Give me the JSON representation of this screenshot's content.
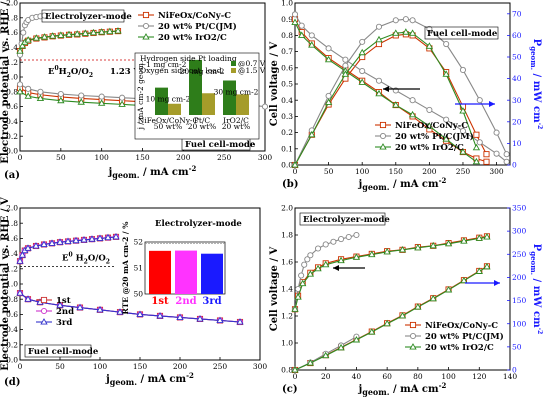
{
  "chart_data": [
    {
      "id": "a",
      "type": "line",
      "panel_label": "(a)",
      "xlabel": "jgeom. / mA cm-2",
      "xlabel_main": "j",
      "xlabel_sub": "geom.",
      "xlabel_unit": " / mA cm",
      "xlabel_sup": "-2",
      "ylabel": "Electrode potential vs. RHE / V",
      "xlim": [
        0,
        300
      ],
      "ylim": [
        0.0,
        2.0
      ],
      "xticks": [
        0,
        50,
        100,
        150,
        200,
        250,
        300
      ],
      "yticks": [
        0.0,
        0.2,
        0.4,
        0.6,
        0.8,
        1.0,
        1.2,
        1.4,
        1.6,
        1.8,
        2.0
      ],
      "mode_top": "Electrolyzer-mode",
      "mode_bottom": "Fuel cell-mode",
      "reference_line": {
        "y": 1.23,
        "label": "E0H2O/O2",
        "value_label": "1.23 V"
      },
      "series": [
        {
          "name": "NiFeOx/CoNy-C",
          "color": "#cc3300",
          "marker": "square",
          "oer_x": [
            0,
            3,
            6,
            10,
            20,
            30,
            40,
            50,
            60,
            70,
            80,
            90,
            100,
            110,
            120
          ],
          "oer_y": [
            1.35,
            1.42,
            1.46,
            1.49,
            1.52,
            1.535,
            1.55,
            1.56,
            1.57,
            1.575,
            1.585,
            1.595,
            1.605,
            1.612,
            1.62
          ],
          "orr_x": [
            0,
            10,
            25,
            50,
            75,
            100,
            125,
            150,
            175,
            200,
            225,
            250,
            275
          ],
          "orr_y": [
            0.85,
            0.79,
            0.76,
            0.73,
            0.71,
            0.695,
            0.68,
            0.665,
            0.65,
            0.635,
            0.62,
            0.605,
            0.59
          ]
        },
        {
          "name": "20 wt% Pt/C(JM)",
          "color": "#888888",
          "marker": "circle",
          "oer_x": [
            0,
            2,
            4,
            6,
            8,
            10,
            15,
            20,
            25,
            30
          ],
          "oer_y": [
            1.3,
            1.45,
            1.6,
            1.7,
            1.74,
            1.77,
            1.8,
            1.81,
            1.82,
            1.83
          ],
          "orr_x": [
            0,
            10,
            25,
            50,
            75,
            100,
            125,
            150,
            175,
            200,
            225,
            250,
            275,
            300
          ],
          "orr_y": [
            0.9,
            0.84,
            0.8,
            0.77,
            0.75,
            0.735,
            0.72,
            0.705,
            0.69,
            0.675,
            0.66,
            0.645,
            0.625,
            0.6
          ]
        },
        {
          "name": "20 wt% IrO2/C",
          "color": "#2e8b22",
          "marker": "triangle",
          "oer_x": [
            0,
            3,
            6,
            10,
            20,
            30,
            40,
            50,
            60,
            70,
            80,
            90,
            100,
            110,
            120
          ],
          "oer_y": [
            1.35,
            1.42,
            1.47,
            1.5,
            1.525,
            1.54,
            1.553,
            1.563,
            1.573,
            1.58,
            1.59,
            1.598,
            1.607,
            1.614,
            1.622
          ],
          "orr_x": [
            0,
            10,
            25,
            50,
            75,
            100,
            125,
            150,
            175,
            200,
            225,
            250
          ],
          "orr_y": [
            0.8,
            0.74,
            0.71,
            0.68,
            0.66,
            0.645,
            0.63,
            0.615,
            0.6,
            0.59,
            0.575,
            0.56
          ]
        }
      ],
      "inset": {
        "ylabel": "j / mA cm-2 geom.",
        "top_text": [
          "Hydrogen side Pt loading",
          "~1 mg cm-2",
          "Oxygen side cat. load."
        ],
        "categories": [
          "NiFeOx/CoNy-C",
          "Pt/C",
          "IrO2/C"
        ],
        "category_sub": [
          "50 wt%",
          "20 wt%",
          "20 wt%"
        ],
        "load_labels": [
          "10 mg cm-2",
          "20 mg cm-2",
          "30 mg cm-2"
        ],
        "legend": [
          "@0.7 V",
          "@1.5 V"
        ],
        "colors": [
          "#2e7d1a",
          "#a59c2a"
        ],
        "values_07": [
          73,
          147,
          92
        ],
        "values_15": [
          30,
          58,
          55
        ],
        "ymax": 160
      }
    },
    {
      "id": "b",
      "type": "line",
      "panel_label": "(b)",
      "xlabel": "jgeom. / mA cm-2",
      "xlabel_main": "j",
      "xlabel_sub": "geom.",
      "xlabel_unit": " / mA cm",
      "xlabel_sup": "-2",
      "ylabel_left": "Cell voltage / V",
      "ylabel_right": "Pgeom. / mW cm-2",
      "ylabel_right_main": "P",
      "ylabel_right_sub": "geom.",
      "ylabel_right_unit": " / mW cm",
      "ylabel_right_sup": "-2",
      "mode": "Fuel cell-mode",
      "xlim": [
        0,
        320
      ],
      "ylim_left": [
        0.0,
        1.0
      ],
      "ylim_right": [
        0,
        75
      ],
      "xticks": [
        0,
        50,
        100,
        150,
        200,
        250,
        300
      ],
      "yticks_left": [
        0.0,
        0.1,
        0.2,
        0.3,
        0.4,
        0.5,
        0.6,
        0.7,
        0.8,
        0.9,
        1.0
      ],
      "yticks_right": [
        0,
        10,
        20,
        30,
        40,
        50,
        60,
        70
      ],
      "series": [
        {
          "name": "NiFeOx/CoNy-C",
          "color": "#cc3300",
          "marker": "square",
          "volt_x": [
            0,
            10,
            25,
            50,
            75,
            100,
            125,
            150,
            175,
            200,
            225,
            250,
            270,
            285
          ],
          "volt_y": [
            0.9,
            0.82,
            0.75,
            0.66,
            0.59,
            0.52,
            0.45,
            0.37,
            0.3,
            0.22,
            0.15,
            0.08,
            0.04,
            0.02
          ],
          "power_x": [
            0,
            25,
            50,
            75,
            100,
            125,
            150,
            165,
            175,
            200,
            225,
            250,
            270,
            285
          ],
          "power_y": [
            0,
            14,
            28,
            40,
            50,
            56,
            60,
            60.5,
            60,
            54,
            43,
            27,
            14,
            5
          ]
        },
        {
          "name": "20 wt% Pt/C(JM)",
          "color": "#888888",
          "marker": "circle",
          "volt_x": [
            0,
            10,
            25,
            50,
            75,
            100,
            125,
            150,
            175,
            200,
            225,
            250,
            275,
            300,
            315
          ],
          "volt_y": [
            0.93,
            0.86,
            0.8,
            0.72,
            0.65,
            0.58,
            0.52,
            0.46,
            0.4,
            0.34,
            0.28,
            0.21,
            0.14,
            0.07,
            0.02
          ],
          "power_x": [
            0,
            25,
            50,
            75,
            100,
            125,
            150,
            165,
            175,
            200,
            225,
            250,
            275,
            300,
            315
          ],
          "power_y": [
            0,
            16,
            32,
            46,
            57,
            64,
            67,
            67.5,
            67,
            63,
            56,
            44,
            30,
            15,
            5
          ]
        },
        {
          "name": "20 wt% IrO2/C",
          "color": "#2e8b22",
          "marker": "triangle",
          "volt_x": [
            0,
            10,
            25,
            50,
            75,
            100,
            125,
            150,
            175,
            200,
            225,
            250,
            270
          ],
          "volt_y": [
            0.88,
            0.8,
            0.74,
            0.65,
            0.58,
            0.51,
            0.44,
            0.37,
            0.31,
            0.24,
            0.16,
            0.08,
            0.02
          ],
          "power_x": [
            0,
            25,
            50,
            75,
            100,
            125,
            150,
            165,
            175,
            200,
            225,
            250,
            270
          ],
          "power_y": [
            0,
            14,
            29,
            42,
            52,
            58,
            61,
            61.5,
            61,
            55,
            42,
            25,
            8
          ]
        }
      ]
    },
    {
      "id": "c",
      "type": "line",
      "panel_label": "(c)",
      "xlabel": "jgeom. / mA cm-2",
      "xlabel_main": "j",
      "xlabel_sub": "geom.",
      "xlabel_unit": " / mA cm",
      "xlabel_sup": "-2",
      "ylabel_left": "Cell voltage / V",
      "ylabel_right": "Pgeom. / mW cm-2",
      "ylabel_right_main": "P",
      "ylabel_right_sub": "geom.",
      "ylabel_right_unit": " / mW cm",
      "ylabel_right_sup": "-2",
      "mode": "Electrolyzer-mode",
      "xlim": [
        0,
        140
      ],
      "ylim_left": [
        0.8,
        2.0
      ],
      "ylim_right": [
        0,
        350
      ],
      "xticks": [
        0,
        20,
        40,
        60,
        80,
        100,
        120,
        140
      ],
      "yticks_left": [
        0.8,
        1.0,
        1.2,
        1.4,
        1.6,
        1.8,
        2.0
      ],
      "yticks_right": [
        0,
        50,
        100,
        150,
        200,
        250,
        300,
        350
      ],
      "series": [
        {
          "name": "NiFeOx/CoNy-C",
          "color": "#cc3300",
          "marker": "square",
          "volt_x": [
            0,
            2,
            5,
            10,
            15,
            20,
            30,
            40,
            50,
            60,
            70,
            80,
            90,
            100,
            110,
            120,
            125
          ],
          "volt_y": [
            1.25,
            1.35,
            1.45,
            1.52,
            1.56,
            1.59,
            1.62,
            1.64,
            1.66,
            1.68,
            1.69,
            1.71,
            1.72,
            1.74,
            1.76,
            1.78,
            1.79
          ],
          "power_x": [
            0,
            10,
            20,
            30,
            40,
            50,
            60,
            70,
            80,
            90,
            100,
            110,
            120,
            125
          ],
          "power_y": [
            0,
            15,
            32,
            49,
            66,
            83,
            101,
            118,
            137,
            155,
            174,
            194,
            214,
            224
          ]
        },
        {
          "name": "20 wt% Pt/C(JM)",
          "color": "#888888",
          "marker": "circle",
          "volt_x": [
            0,
            2,
            4,
            6,
            8,
            10,
            15,
            20,
            25,
            30,
            35,
            40
          ],
          "volt_y": [
            1.25,
            1.4,
            1.5,
            1.58,
            1.62,
            1.65,
            1.7,
            1.73,
            1.75,
            1.77,
            1.785,
            1.8
          ],
          "power_x": [
            0,
            10,
            20,
            30,
            40
          ],
          "power_y": [
            0,
            16,
            35,
            53,
            72
          ]
        },
        {
          "name": "20 wt% IrO2/C",
          "color": "#2e8b22",
          "marker": "triangle",
          "volt_x": [
            0,
            2,
            5,
            10,
            15,
            20,
            30,
            40,
            50,
            60,
            70,
            80,
            90,
            100,
            110,
            120,
            125
          ],
          "volt_y": [
            1.25,
            1.34,
            1.44,
            1.51,
            1.55,
            1.58,
            1.61,
            1.635,
            1.655,
            1.675,
            1.69,
            1.705,
            1.72,
            1.735,
            1.755,
            1.775,
            1.785
          ],
          "power_x": [
            0,
            10,
            20,
            30,
            40,
            50,
            60,
            70,
            80,
            90,
            100,
            110,
            120,
            125
          ],
          "power_y": [
            0,
            15,
            31,
            48,
            65,
            82,
            100,
            117,
            136,
            154,
            173,
            193,
            213,
            223
          ]
        }
      ]
    },
    {
      "id": "d",
      "type": "line",
      "panel_label": "(d)",
      "xlabel": "jgeom. / mA cm-2",
      "xlabel_main": "j",
      "xlabel_sub": "geom.",
      "xlabel_unit": " / mA cm",
      "xlabel_sup": "-2",
      "ylabel": "Electrode potential vs. RHE / V",
      "xlim": [
        0,
        300
      ],
      "ylim": [
        0.0,
        2.0
      ],
      "xticks": [
        0,
        50,
        100,
        150,
        200,
        250,
        300
      ],
      "yticks": [
        0.0,
        0.2,
        0.4,
        0.6,
        0.8,
        1.0,
        1.2,
        1.4,
        1.6,
        1.8,
        2.0
      ],
      "mode_top": "Electrolyzer-mode",
      "mode_bottom": "Fuel cell-mode",
      "reference_line": {
        "y": 1.23,
        "label": "E0 H2O/O2"
      },
      "series": [
        {
          "name": "1st",
          "color": "#cc3333",
          "marker": "square",
          "oer_x": [
            0,
            3,
            6,
            10,
            20,
            30,
            40,
            50,
            60,
            70,
            80,
            90,
            100,
            110,
            120
          ],
          "oer_y": [
            1.3,
            1.38,
            1.44,
            1.47,
            1.5,
            1.52,
            1.535,
            1.55,
            1.56,
            1.57,
            1.58,
            1.59,
            1.6,
            1.61,
            1.62
          ],
          "orr_x": [
            0,
            10,
            25,
            50,
            75,
            100,
            125,
            150,
            175,
            200,
            225,
            250,
            275
          ],
          "orr_y": [
            0.88,
            0.8,
            0.76,
            0.72,
            0.69,
            0.66,
            0.63,
            0.6,
            0.58,
            0.56,
            0.54,
            0.52,
            0.5
          ]
        },
        {
          "name": "2nd",
          "color": "#cc33cc",
          "marker": "circle",
          "oer_x": [
            0,
            3,
            6,
            10,
            20,
            30,
            40,
            50,
            60,
            70,
            80,
            90,
            100,
            110,
            120
          ],
          "oer_y": [
            1.3,
            1.38,
            1.44,
            1.47,
            1.5,
            1.52,
            1.535,
            1.55,
            1.56,
            1.57,
            1.58,
            1.59,
            1.6,
            1.61,
            1.62
          ],
          "orr_x": [
            0,
            10,
            25,
            50,
            75,
            100,
            125,
            150,
            175,
            200,
            225,
            250,
            275
          ],
          "orr_y": [
            0.88,
            0.8,
            0.76,
            0.72,
            0.69,
            0.66,
            0.63,
            0.6,
            0.58,
            0.56,
            0.54,
            0.52,
            0.5
          ]
        },
        {
          "name": "3rd",
          "color": "#3333cc",
          "marker": "triangle",
          "oer_x": [
            0,
            3,
            6,
            10,
            20,
            30,
            40,
            50,
            60,
            70,
            80,
            90,
            100,
            110,
            120
          ],
          "oer_y": [
            1.3,
            1.38,
            1.44,
            1.47,
            1.5,
            1.52,
            1.535,
            1.55,
            1.56,
            1.57,
            1.58,
            1.59,
            1.6,
            1.61,
            1.62
          ],
          "orr_x": [
            0,
            10,
            25,
            50,
            75,
            100,
            125,
            150,
            175,
            200,
            225,
            250,
            275
          ],
          "orr_y": [
            0.88,
            0.8,
            0.76,
            0.72,
            0.69,
            0.66,
            0.63,
            0.6,
            0.58,
            0.56,
            0.54,
            0.52,
            0.5
          ]
        }
      ],
      "inset": {
        "type": "bar",
        "ylabel": "RTE @20 mA cm-2 / %",
        "categories": [
          "1st",
          "2nd",
          "3rd"
        ],
        "values": [
          51.66,
          51.67,
          51.55
        ],
        "colors": [
          "#ff0000",
          "#ff33ff",
          "#1a1aff"
        ],
        "ylim": [
          50,
          52
        ],
        "yticks": [
          50,
          51,
          52
        ]
      }
    }
  ]
}
